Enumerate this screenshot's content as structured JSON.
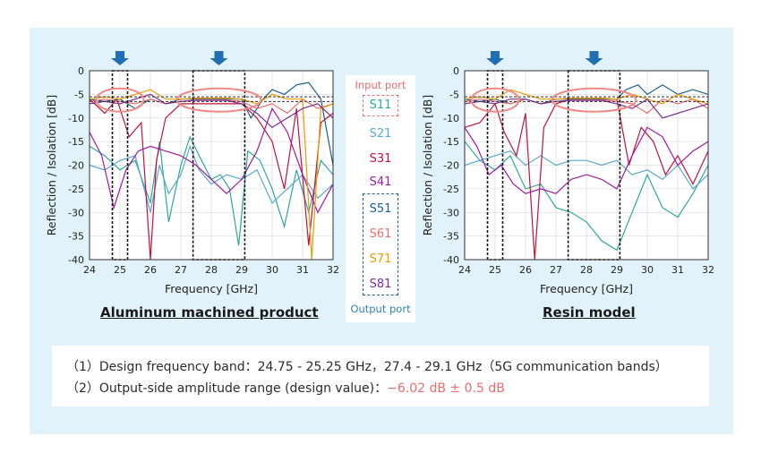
{
  "colors": {
    "S11": "#2fa89a",
    "S21": "#5aa9cf",
    "S31": "#c0143c",
    "S41": "#a11aa1",
    "S51": "#1c5f8c",
    "S61": "#ec6d6d",
    "S71": "#ee9a00",
    "S81": "#7a2f8f",
    "panel": "#e2f2fb",
    "arrow": "#1f6fb2",
    "ellipse": "#ef8b86",
    "input_port": "#ec6d6d",
    "output_port": "#2f83b8"
  },
  "legend": {
    "input_port": "Input port",
    "output_port": "Output port",
    "items": [
      "S11",
      "S21",
      "S31",
      "S41",
      "S51",
      "S61",
      "S71",
      "S81"
    ]
  },
  "notes": {
    "line1": "（1）Design frequency band：24.75 - 25.25 GHz，27.4 - 29.1 GHz（5G communication bands）",
    "line2_prefix": "（2）Output-side amplitude range (design value)：",
    "line2_value": "−6.02 dB ± 0.5 dB"
  },
  "chart_data": [
    {
      "type": "line",
      "title": "Aluminum machined product",
      "xlabel": "Frequency [GHz]",
      "ylabel": "Reflection / Isolation [dB]",
      "xlim": [
        24,
        32
      ],
      "ylim": [
        -40,
        0
      ],
      "xticks": [
        "24",
        "25",
        "26",
        "27",
        "28",
        "29",
        "30",
        "31",
        "32"
      ],
      "yticks": [
        "0",
        "-5",
        "-10",
        "-15",
        "-20",
        "-25",
        "-30",
        "-35",
        "-40"
      ],
      "design_bands": [
        [
          24.75,
          25.25
        ],
        [
          27.4,
          29.1
        ]
      ],
      "amplitude_range": [
        -5.52,
        -6.52
      ],
      "series": [
        {
          "name": "S11",
          "x": [
            24,
            24.5,
            25,
            25.5,
            26,
            26.3,
            26.6,
            27,
            27.3,
            27.6,
            28,
            28.3,
            28.6,
            28.9,
            29.2,
            29.6,
            30,
            30.4,
            30.8,
            31.2,
            31.6,
            32
          ],
          "y": [
            -16,
            -18,
            -21,
            -19,
            -28,
            -15,
            -32,
            -20,
            -14,
            -18,
            -23,
            -22,
            -25,
            -37,
            -17,
            -19,
            -25,
            -33,
            -21,
            -30,
            -19,
            -22
          ]
        },
        {
          "name": "S21",
          "x": [
            24,
            24.5,
            25,
            25.5,
            26,
            26.3,
            26.6,
            27,
            27.3,
            27.6,
            28,
            28.5,
            29,
            29.5,
            30,
            30.5,
            31,
            31.5,
            32
          ],
          "y": [
            -20,
            -21,
            -19,
            -18,
            -30,
            -20,
            -26,
            -22,
            -16,
            -21,
            -24,
            -22,
            -23,
            -21,
            -28,
            -25,
            -22,
            -27,
            -24
          ]
        },
        {
          "name": "S31",
          "x": [
            24,
            24.5,
            24.9,
            25.3,
            25.7,
            26,
            26.2,
            26.5,
            27,
            27.5,
            28,
            28.5,
            29,
            29.5,
            30,
            30.4,
            30.8,
            31.2,
            31.6,
            32
          ],
          "y": [
            -6,
            -9,
            -6,
            -14,
            -11,
            -40,
            -19,
            -10,
            -7,
            -7,
            -7,
            -7,
            -7,
            -10,
            -15,
            -25,
            -8,
            -37,
            -11,
            -9
          ]
        },
        {
          "name": "S41",
          "x": [
            24,
            24.4,
            24.8,
            25.2,
            25.6,
            26,
            26.5,
            27,
            27.5,
            28,
            28.5,
            29,
            29.5,
            30,
            30.5,
            31,
            31.5,
            32
          ],
          "y": [
            -13,
            -18,
            -29,
            -21,
            -17,
            -16,
            -17,
            -18,
            -20,
            -23,
            -26,
            -23,
            -17,
            -8,
            -13,
            -22,
            -30,
            -24
          ]
        },
        {
          "name": "S51",
          "x": [
            24,
            24.5,
            25,
            25.5,
            26,
            26.5,
            27,
            27.5,
            28,
            28.5,
            29,
            29.3,
            29.7,
            30,
            30.4,
            30.8,
            31.2,
            31.6,
            32
          ],
          "y": [
            -6,
            -6.5,
            -6,
            -8,
            -6,
            -7,
            -6,
            -6,
            -6,
            -6,
            -6,
            -10,
            -6,
            -4,
            -5,
            -3,
            -2.5,
            -6,
            -20
          ]
        },
        {
          "name": "S61",
          "x": [
            24,
            24.5,
            25,
            25.5,
            26,
            26.5,
            27,
            27.5,
            28,
            28.5,
            29,
            29.5,
            30,
            30.5,
            31,
            31.5,
            32
          ],
          "y": [
            -6.5,
            -6,
            -6.5,
            -7,
            -6,
            -7,
            -6.5,
            -6.2,
            -6.2,
            -6.2,
            -6.5,
            -8,
            -7,
            -9,
            -6,
            -8,
            -7
          ]
        },
        {
          "name": "S71",
          "x": [
            24,
            24.5,
            25,
            25.5,
            26,
            26.5,
            27,
            27.5,
            28,
            28.5,
            29,
            29.5,
            30,
            30.5,
            31,
            31.3,
            31.6,
            32
          ],
          "y": [
            -6,
            -5.5,
            -6,
            -5,
            -4,
            -6,
            -6,
            -5.8,
            -5.8,
            -5.8,
            -6,
            -7,
            -5,
            -6,
            -6,
            -40,
            -8,
            -7
          ]
        },
        {
          "name": "S81",
          "x": [
            24,
            24.5,
            25,
            25.5,
            26,
            26.5,
            27,
            27.5,
            28,
            28.5,
            29,
            29.5,
            30,
            30.5,
            31,
            31.5,
            32
          ],
          "y": [
            -7,
            -6.5,
            -7,
            -6,
            -5,
            -7,
            -6.5,
            -6.3,
            -6.3,
            -6.3,
            -7,
            -9,
            -12,
            -10,
            -8,
            -7,
            -10
          ]
        }
      ]
    },
    {
      "type": "line",
      "title": "Resin model",
      "xlabel": "Frequency [GHz]",
      "ylabel": "Reflection / Isolation [dB]",
      "xlim": [
        24,
        32
      ],
      "ylim": [
        -40,
        0
      ],
      "xticks": [
        "24",
        "25",
        "26",
        "27",
        "28",
        "29",
        "30",
        "31",
        "32"
      ],
      "yticks": [
        "0",
        "-5",
        "-10",
        "-15",
        "-20",
        "-25",
        "-30",
        "-35",
        "-40"
      ],
      "design_bands": [
        [
          24.75,
          25.25
        ],
        [
          27.4,
          29.1
        ]
      ],
      "amplitude_range": [
        -5.52,
        -6.52
      ],
      "series": [
        {
          "name": "S11",
          "x": [
            24,
            24.5,
            25,
            25.5,
            26,
            26.5,
            27,
            27.5,
            28,
            28.5,
            29,
            29.5,
            30,
            30.5,
            31,
            31.5,
            32
          ],
          "y": [
            -15,
            -19,
            -21,
            -18,
            -25,
            -24,
            -29,
            -30,
            -32,
            -36,
            -38,
            -30,
            -22,
            -29,
            -31,
            -26,
            -20
          ]
        },
        {
          "name": "S21",
          "x": [
            24,
            24.5,
            25,
            25.5,
            26,
            26.5,
            27,
            27.5,
            28,
            28.5,
            29,
            29.5,
            30,
            30.5,
            31,
            31.5,
            32
          ],
          "y": [
            -20,
            -19,
            -18,
            -17,
            -20,
            -18,
            -20,
            -19,
            -19,
            -20,
            -19,
            -22,
            -21,
            -23,
            -20,
            -25,
            -22
          ]
        },
        {
          "name": "S31",
          "x": [
            24,
            24.5,
            25,
            25.3,
            25.7,
            26,
            26.3,
            26.6,
            27,
            27.5,
            28,
            28.5,
            29,
            29.4,
            29.8,
            30.2,
            30.6,
            31,
            31.5,
            32
          ],
          "y": [
            -12,
            -11,
            -7,
            -13,
            -18,
            -9,
            -40,
            -12,
            -7,
            -6,
            -6,
            -6,
            -6,
            -20,
            -12,
            -15,
            -22,
            -18,
            -24,
            -17
          ]
        },
        {
          "name": "S41",
          "x": [
            24,
            24.4,
            24.8,
            25.2,
            25.6,
            26,
            26.5,
            27,
            27.5,
            28,
            28.5,
            29,
            29.5,
            30,
            30.5,
            31,
            31.5,
            32
          ],
          "y": [
            -12,
            -16,
            -22,
            -20,
            -24,
            -26,
            -25,
            -26,
            -23,
            -22,
            -23,
            -25,
            -18,
            -12,
            -14,
            -20,
            -17,
            -15
          ]
        },
        {
          "name": "S51",
          "x": [
            24,
            24.5,
            25,
            25.5,
            26,
            26.5,
            27,
            27.5,
            28,
            28.5,
            29,
            29.3,
            29.7,
            30,
            30.5,
            31,
            31.5,
            32
          ],
          "y": [
            -6,
            -6.5,
            -6,
            -7,
            -6,
            -7,
            -6,
            -6,
            -6,
            -6,
            -6,
            -4,
            -3,
            -5,
            -3,
            -5,
            -4,
            -5
          ]
        },
        {
          "name": "S61",
          "x": [
            24,
            24.5,
            25,
            25.5,
            26,
            26.5,
            27,
            27.5,
            28,
            28.5,
            29,
            29.5,
            30,
            30.5,
            31,
            31.5,
            32
          ],
          "y": [
            -6.5,
            -6,
            -6.5,
            -7,
            -6,
            -7,
            -6.5,
            -6.2,
            -6.2,
            -6.2,
            -6.5,
            -7,
            -9,
            -6,
            -7,
            -6,
            -8
          ]
        },
        {
          "name": "S71",
          "x": [
            24,
            24.5,
            25,
            25.5,
            26,
            26.5,
            27,
            27.5,
            28,
            28.5,
            29,
            29.5,
            30,
            30.5,
            31,
            31.5,
            32
          ],
          "y": [
            -6,
            -5.5,
            -6,
            -4,
            -5,
            -6,
            -6,
            -5.8,
            -5.8,
            -5.8,
            -6,
            -5,
            -6,
            -7,
            -5,
            -6,
            -7
          ]
        },
        {
          "name": "S81",
          "x": [
            24,
            24.5,
            25,
            25.5,
            26,
            26.5,
            27,
            27.5,
            28,
            28.5,
            29,
            29.5,
            30,
            30.5,
            31,
            31.5,
            32
          ],
          "y": [
            -7,
            -6.5,
            -7,
            -6,
            -6,
            -7,
            -6.5,
            -6.3,
            -6.3,
            -6.3,
            -7,
            -8,
            -6,
            -10,
            -9,
            -8,
            -7
          ]
        }
      ]
    }
  ]
}
